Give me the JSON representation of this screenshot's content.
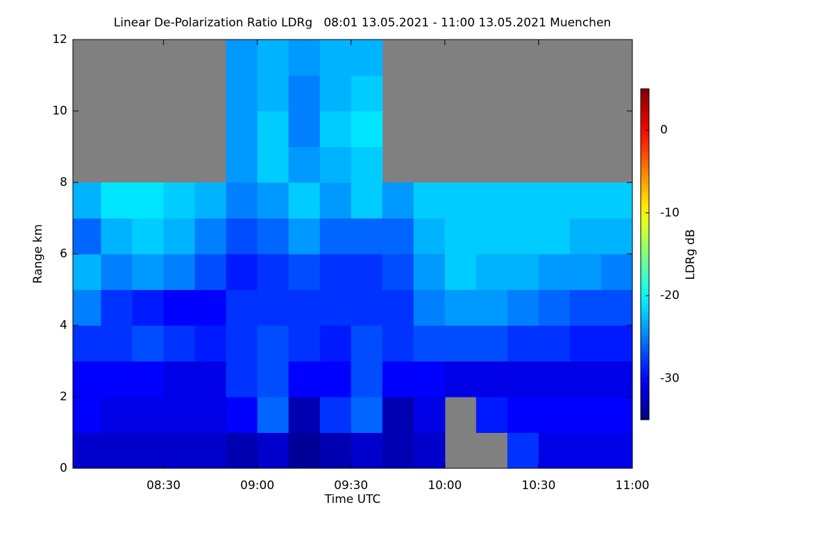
{
  "chart_data": {
    "type": "heatmap",
    "title": "Linear De-Polarization Ratio LDRg   08:01 13.05.2021 - 11:00 13.05.2021 Muenchen",
    "xlabel": "Time UTC",
    "ylabel": "Range km",
    "colorbar_label": "LDRg dB",
    "x": [
      "08:01",
      "08:10",
      "08:20",
      "08:30",
      "08:40",
      "08:50",
      "09:00",
      "09:10",
      "09:20",
      "09:30",
      "09:40",
      "09:50",
      "10:00",
      "10:10",
      "10:20",
      "10:30",
      "10:40",
      "10:50",
      "11:00"
    ],
    "y": [
      0,
      1,
      2,
      3,
      4,
      5,
      6,
      7,
      8,
      9,
      10,
      11,
      12
    ],
    "z": [
      [
        -32,
        -32,
        -32,
        -32,
        -32,
        -33,
        -32,
        -34,
        -33,
        -32,
        -33,
        -32,
        null,
        null,
        -28,
        -31,
        -31,
        -31
      ],
      [
        -30,
        -31,
        -31,
        -31,
        -31,
        -30,
        -26,
        -33,
        -28,
        -26,
        -33,
        -31,
        null,
        -29,
        -30,
        -30,
        -30,
        -30
      ],
      [
        -30,
        -30,
        -30,
        -31,
        -31,
        -28,
        -27,
        -30,
        -30,
        -27,
        -30,
        -30,
        -31,
        -31,
        -31,
        -31,
        -31,
        -31
      ],
      [
        -28,
        -28,
        -27,
        -28,
        -29,
        -28,
        -27,
        -28,
        -29,
        -27,
        -28,
        -27,
        -27,
        -27,
        -28,
        -28,
        -29,
        -29
      ],
      [
        -25,
        -28,
        -29,
        -30,
        -30,
        -28,
        -28,
        -28,
        -28,
        -28,
        -28,
        -25,
        -24,
        -24,
        -25,
        -26,
        -27,
        -27
      ],
      [
        -23,
        -25,
        -24,
        -25,
        -27,
        -29,
        -28,
        -27,
        -28,
        -28,
        -27,
        -24,
        -22,
        -23,
        -23,
        -24,
        -24,
        -25
      ],
      [
        -26,
        -23,
        -22,
        -23,
        -25,
        -27,
        -26,
        -24,
        -26,
        -26,
        -26,
        -23,
        -22,
        -22,
        -22,
        -22,
        -23,
        -23
      ],
      [
        -23,
        -21,
        -21,
        -22,
        -23,
        -25,
        -24,
        -22,
        -24,
        -22,
        -24,
        -22,
        -22,
        -22,
        -22,
        -22,
        -22,
        -22
      ],
      [
        null,
        null,
        null,
        null,
        null,
        -24,
        -22,
        -24,
        -23,
        -22,
        null,
        null,
        null,
        null,
        null,
        null,
        null,
        null
      ],
      [
        null,
        null,
        null,
        null,
        null,
        -24,
        -22,
        -25,
        -22,
        -21,
        null,
        null,
        null,
        null,
        null,
        null,
        null,
        null
      ],
      [
        null,
        null,
        null,
        null,
        null,
        -24,
        -23,
        -25,
        -23,
        -22,
        null,
        null,
        null,
        null,
        null,
        null,
        null,
        null
      ],
      [
        null,
        null,
        null,
        null,
        null,
        -24,
        -23,
        -24,
        -23,
        -23,
        null,
        null,
        null,
        null,
        null,
        null,
        null,
        null
      ]
    ],
    "xlim": [
      "08:01",
      "11:00"
    ],
    "xticks": [
      "08:30",
      "09:00",
      "09:30",
      "10:00",
      "10:30",
      "11:00"
    ],
    "ylim": [
      0,
      12
    ],
    "yticks": [
      0,
      2,
      4,
      6,
      8,
      10,
      12
    ],
    "zlim": [
      -35,
      5
    ],
    "zticks": [
      -30,
      -20,
      -10,
      0
    ],
    "colormap": "jet",
    "missing_color": "#808080"
  }
}
